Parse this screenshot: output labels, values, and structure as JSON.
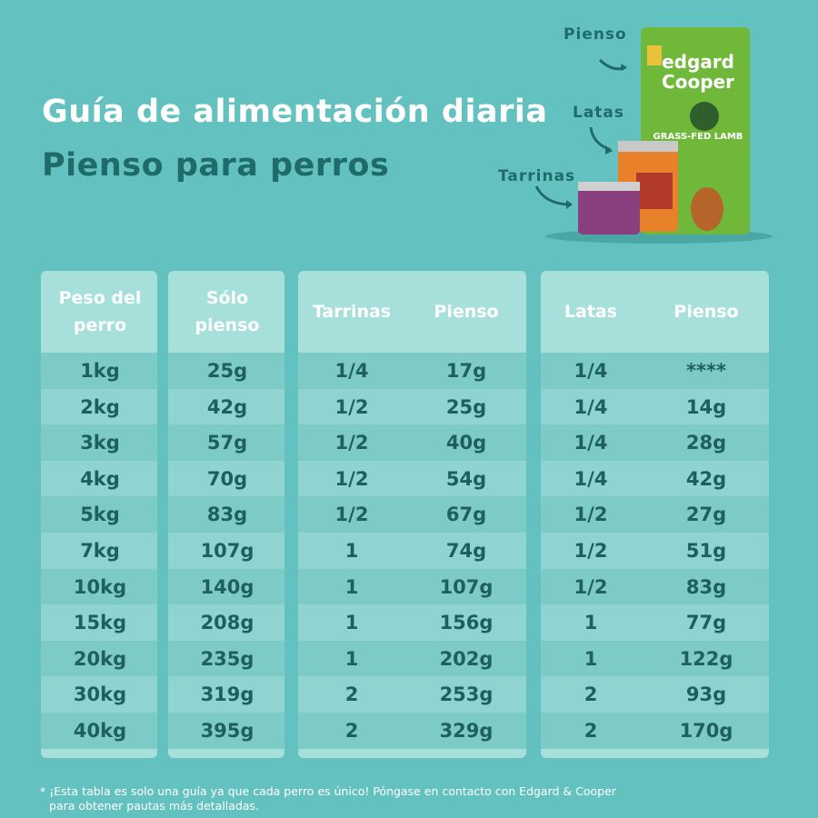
{
  "header": {
    "title": "Guía de alimentación diaria",
    "subtitle": "Pienso para perros"
  },
  "products": {
    "labels": [
      "Pienso",
      "Latas",
      "Tarrinas"
    ],
    "package_texts": [
      "edgard",
      "Cooper",
      "GRASS-FED LAMB"
    ]
  },
  "table": {
    "columns": [
      "Peso del perro",
      "Sólo pienso",
      "Tarrinas",
      "Pienso",
      "Latas",
      "Pienso"
    ],
    "rows": [
      [
        "1kg",
        "25g",
        "1/4",
        "17g",
        "1/4",
        "****"
      ],
      [
        "2kg",
        "42g",
        "1/2",
        "25g",
        "1/4",
        "14g"
      ],
      [
        "3kg",
        "57g",
        "1/2",
        "40g",
        "1/4",
        "28g"
      ],
      [
        "4kg",
        "70g",
        "1/2",
        "54g",
        "1/4",
        "42g"
      ],
      [
        "5kg",
        "83g",
        "1/2",
        "67g",
        "1/2",
        "27g"
      ],
      [
        "7kg",
        "107g",
        "1",
        "74g",
        "1/2",
        "51g"
      ],
      [
        "10kg",
        "140g",
        "1",
        "107g",
        "1/2",
        "83g"
      ],
      [
        "15kg",
        "208g",
        "1",
        "156g",
        "1",
        "77g"
      ],
      [
        "20kg",
        "235g",
        "1",
        "202g",
        "1",
        "122g"
      ],
      [
        "30kg",
        "319g",
        "2",
        "253g",
        "2",
        "93g"
      ],
      [
        "40kg",
        "395g",
        "2",
        "329g",
        "2",
        "170g"
      ]
    ]
  },
  "footnote": {
    "lines": [
      "* ¡Esta tabla es solo una guía ya que cada perro es único! Póngase en contacto con Edgard & Cooper",
      "para obtener pautas más detalladas."
    ]
  }
}
